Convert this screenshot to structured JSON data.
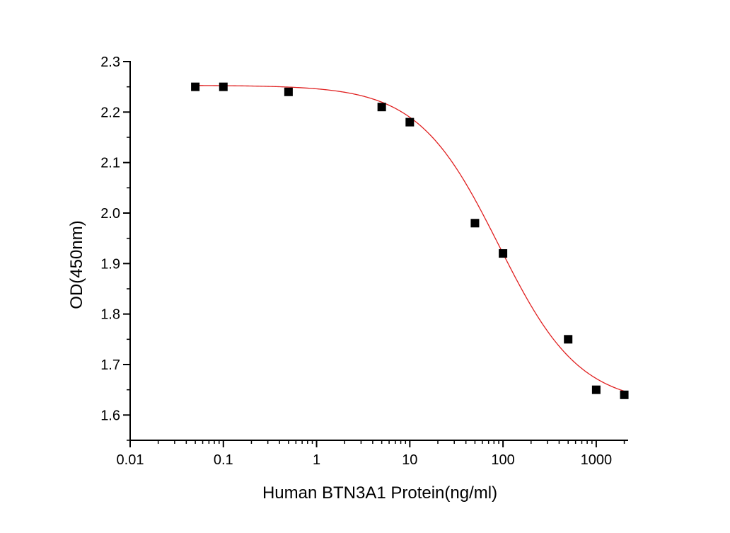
{
  "chart_data": {
    "type": "scatter",
    "title": "",
    "xlabel": "Human BTN3A1 Protein(ng/ml)",
    "ylabel": "OD(450nm)",
    "xscale": "log",
    "xlim": [
      0.01,
      2200
    ],
    "ylim": [
      1.55,
      2.3
    ],
    "xticks": [
      0.01,
      0.1,
      1,
      10,
      100,
      1000
    ],
    "xtick_labels": [
      "0.01",
      "0.1",
      "1",
      "10",
      "100",
      "1000"
    ],
    "yticks": [
      1.6,
      1.7,
      1.8,
      1.9,
      2.0,
      2.1,
      2.2,
      2.3
    ],
    "ytick_labels": [
      "1.6",
      "1.7",
      "1.8",
      "1.9",
      "2.0",
      "2.1",
      "2.2",
      "2.3"
    ],
    "grid": false,
    "legend": "none",
    "series": [
      {
        "marker": "square",
        "color": "#000000",
        "x": [
          0.05,
          0.1,
          0.5,
          5,
          10,
          50,
          100,
          500,
          1000,
          2000
        ],
        "y": [
          2.25,
          2.25,
          2.24,
          2.21,
          2.18,
          1.98,
          1.92,
          1.75,
          1.65,
          1.64
        ]
      }
    ],
    "fit": {
      "model": "4PL",
      "color": "#e02020",
      "top": 2.253,
      "bottom": 1.62,
      "ec50": 90,
      "hill": 1.0
    }
  }
}
